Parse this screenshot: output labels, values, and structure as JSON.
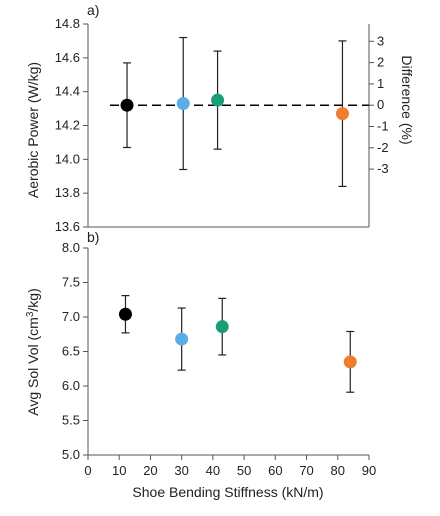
{
  "chart_data": [
    {
      "panel": "a)",
      "type": "scatter",
      "ylabel": "Aerobic Power (W/kg)",
      "y2label": "Difference (%)",
      "ylim": [
        13.6,
        14.8
      ],
      "yticks": [
        "13.6",
        "13.8",
        "14.0",
        "14.2",
        "14.4",
        "14.6",
        "14.8"
      ],
      "y2lim": [
        -3,
        3
      ],
      "y2ticks": [
        "-3",
        "-2",
        "-1",
        "0",
        "1",
        "2",
        "3"
      ],
      "xlim": [
        0,
        90
      ],
      "reference_line": 14.32,
      "points": [
        {
          "x": 12.5,
          "y": 14.32,
          "err": 0.25,
          "color": "#000000"
        },
        {
          "x": 30.5,
          "y": 14.33,
          "err": 0.39,
          "color": "#5aaee8"
        },
        {
          "x": 41.5,
          "y": 14.35,
          "err": 0.29,
          "color": "#1a9e77"
        },
        {
          "x": 81.5,
          "y": 14.27,
          "err": 0.43,
          "color": "#ee7d31"
        }
      ]
    },
    {
      "panel": "b)",
      "type": "scatter",
      "ylabel": "Avg Sol Vol (cm³/kg)",
      "ylim": [
        5.0,
        8.0
      ],
      "yticks": [
        "5.0",
        "5.5",
        "6.0",
        "6.5",
        "7.0",
        "7.5",
        "8.0"
      ],
      "xlim": [
        0,
        90
      ],
      "xticks": [
        "0",
        "10",
        "20",
        "30",
        "40",
        "50",
        "60",
        "70",
        "80",
        "90"
      ],
      "xlabel": "Shoe Bending Stiffness (kN/m)",
      "points": [
        {
          "x": 12.0,
          "y": 7.04,
          "err": 0.27,
          "color": "#000000"
        },
        {
          "x": 30.0,
          "y": 6.68,
          "err": 0.45,
          "color": "#5aaee8"
        },
        {
          "x": 43.0,
          "y": 6.86,
          "err": 0.41,
          "color": "#1a9e77"
        },
        {
          "x": 84.0,
          "y": 6.35,
          "err": 0.44,
          "color": "#ee7d31"
        }
      ]
    }
  ]
}
